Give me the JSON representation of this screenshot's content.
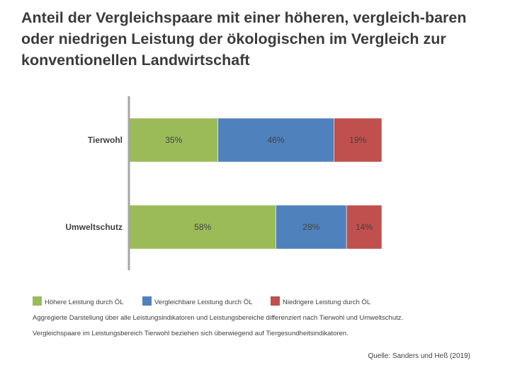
{
  "title": "Anteil der Vergleichspaare mit einer höheren, vergleich-baren oder niedrigen Leistung der ökologischen im Vergleich zur konventionellen Landwirtschaft",
  "chart_data": {
    "type": "bar",
    "orientation": "horizontal",
    "stacked": true,
    "categories": [
      "Tierwohl",
      "Umweltschutz"
    ],
    "series": [
      {
        "name": "Höhere Leistung durch ÖL",
        "values": [
          35,
          58
        ],
        "labels": [
          "35%",
          "58%"
        ],
        "color": "#9bbb59"
      },
      {
        "name": "Vergleichbare Leistung durch ÖL",
        "values": [
          46,
          28
        ],
        "labels": [
          "46%",
          "28%"
        ],
        "color": "#4f81bd"
      },
      {
        "name": "Niedrigere Leistung durch ÖL",
        "values": [
          19,
          14
        ],
        "labels": [
          "19%",
          "14%"
        ],
        "color": "#c0504d"
      }
    ],
    "xlim": [
      0,
      100
    ],
    "legend_position": "bottom-left"
  },
  "notes": {
    "line1": "Aggregierte Darstellung über alle Leistungsindikatoren und Leistungsbereiche differenziert nach Tierwohl und Umweltschutz.",
    "line2": "Vergleichspaare im Leistungsbereich Tierwohl beziehen sich überwiegend auf Tiergesundheitsindikatoren."
  },
  "source": "Quelle: Sanders und Heß (2019)"
}
